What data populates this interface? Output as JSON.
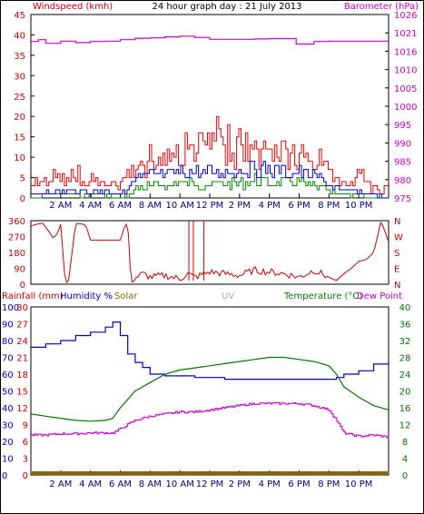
{
  "chart_data": [
    {
      "type": "line",
      "title": "24 hour graph day : 21 July 2013",
      "left_axis_label": "Windspeed (kmh)",
      "right_axis_label": "Barometer (hPa)",
      "left_ylim": [
        0,
        45
      ],
      "left_ticks": [
        "0",
        "5",
        "10",
        "15",
        "20",
        "25",
        "30",
        "35",
        "40",
        "45"
      ],
      "right_ylim": [
        975,
        1026
      ],
      "right_ticks": [
        "975",
        "980",
        "985",
        "990",
        "995",
        "1000",
        "1005",
        "1010",
        "1016",
        "1021",
        "1026"
      ],
      "x_range_hours": [
        0,
        24
      ],
      "x_ticks": [
        {
          "h": 2,
          "label": "2 AM"
        },
        {
          "h": 4,
          "label": "4 AM"
        },
        {
          "h": 6,
          "label": "6 AM"
        },
        {
          "h": 8,
          "label": "8 AM"
        },
        {
          "h": 10,
          "label": "10 AM"
        },
        {
          "h": 12,
          "label": "12 PM"
        },
        {
          "h": 14,
          "label": "2 PM"
        },
        {
          "h": 16,
          "label": "4 PM"
        },
        {
          "h": 18,
          "label": "6 PM"
        },
        {
          "h": 20,
          "label": "8 PM"
        },
        {
          "h": 22,
          "label": "10 PM"
        }
      ],
      "colors": {
        "gust": "#ee0000",
        "avg": "#0000cc",
        "min": "#008800",
        "barometer": "#cc00cc"
      },
      "series": [
        {
          "key": "barometer",
          "axis": "right",
          "x": [
            0,
            0.5,
            1,
            2,
            3,
            4,
            5,
            6,
            7,
            8,
            9,
            10,
            11,
            12,
            13,
            14,
            15,
            16,
            17,
            17.8,
            18.5,
            19,
            20,
            21,
            22,
            23,
            24
          ],
          "values": [
            1018.5,
            1019,
            1018,
            1018.6,
            1018.2,
            1018.5,
            1018.6,
            1019,
            1019.4,
            1019.5,
            1019.8,
            1020,
            1019.6,
            1019.1,
            1019.1,
            1019.1,
            1019.2,
            1019.3,
            1019.3,
            1017.8,
            1017.8,
            1018.5,
            1018.6,
            1018.6,
            1018.6,
            1018.6,
            1018.6
          ]
        },
        {
          "key": "gust",
          "axis": "left",
          "x": [
            0,
            1,
            2,
            3,
            4,
            5,
            6,
            6.5,
            7,
            8,
            9,
            10,
            11,
            12,
            12.5,
            13,
            14,
            15,
            16,
            17,
            18,
            19,
            20,
            20.5,
            21,
            22,
            22.5,
            23,
            24
          ],
          "values": [
            3,
            4,
            5,
            5,
            4,
            3,
            2,
            6,
            10,
            11,
            12,
            14,
            15,
            17,
            18,
            16,
            16,
            15,
            15,
            14,
            12,
            11,
            8,
            6,
            3,
            6,
            4,
            2,
            0
          ]
        },
        {
          "key": "avg",
          "axis": "left",
          "x": [
            0,
            1,
            2,
            3,
            4,
            5,
            6,
            6.5,
            7,
            8,
            9,
            10,
            11,
            12,
            13,
            14,
            15,
            16,
            17,
            18,
            19,
            20,
            21,
            22,
            23,
            24
          ],
          "values": [
            1,
            2,
            2,
            2,
            2,
            2,
            1,
            3,
            6,
            7,
            7,
            8,
            8,
            8,
            8,
            9,
            9,
            9,
            8,
            8,
            7,
            4,
            2,
            2,
            1,
            0
          ]
        },
        {
          "key": "min",
          "axis": "left",
          "x": [
            0,
            1,
            2,
            3,
            4,
            5,
            6,
            6.5,
            7,
            8,
            9,
            10,
            11,
            12,
            13,
            14,
            15,
            16,
            17,
            18,
            19,
            20,
            21,
            22,
            23,
            24
          ],
          "values": [
            0,
            1,
            1,
            1,
            1,
            1,
            0,
            1,
            3,
            4,
            4,
            5,
            5,
            4,
            5,
            5,
            6,
            5,
            5,
            5,
            4,
            2,
            1,
            1,
            0,
            0
          ]
        }
      ]
    },
    {
      "type": "line",
      "title": "",
      "left_ylim": [
        0,
        360
      ],
      "left_ticks": [
        "0",
        "90",
        "180",
        "270",
        "360"
      ],
      "right_ticks": [
        "N",
        "E",
        "S",
        "W",
        "N"
      ],
      "colors": {
        "direction": "#cc0000"
      },
      "series": [
        {
          "key": "direction",
          "x": [
            0,
            0.4,
            0.8,
            1.2,
            1.5,
            1.8,
            2.0,
            2.3,
            2.5,
            3.0,
            3.5,
            3.7,
            4.0,
            5.0,
            6.0,
            6.3,
            6.5,
            6.7,
            7.5,
            8.0,
            9.0,
            10.0,
            10.5,
            11.0,
            12.0,
            13.0,
            14.0,
            15.0,
            16.0,
            17.0,
            18.0,
            19.0,
            20.0,
            20.5,
            21.0,
            21.5,
            22.0,
            22.5,
            23.0,
            23.5,
            24.0
          ],
          "values": [
            330,
            340,
            345,
            300,
            260,
            290,
            340,
            20,
            0,
            345,
            340,
            330,
            250,
            250,
            250,
            330,
            350,
            20,
            60,
            40,
            50,
            30,
            60,
            40,
            70,
            60,
            50,
            80,
            70,
            60,
            40,
            80,
            40,
            20,
            60,
            90,
            130,
            140,
            180,
            360,
            240
          ]
        }
      ]
    },
    {
      "type": "line",
      "title": "",
      "labels": {
        "rainfall": "Rainfall (mm)",
        "humidity": "Humidity %",
        "solar": "Solar",
        "uv": "UV",
        "temperature": "Temperature (°C)",
        "dewpoint": "Dew Point"
      },
      "left_ticks_rain": [
        "0",
        "3",
        "6",
        "9",
        "12",
        "15",
        "18",
        "21",
        "24",
        "27",
        "30"
      ],
      "left_ticks_humidity": [
        "0",
        "10",
        "20",
        "30",
        "40",
        "50",
        "60",
        "70",
        "80",
        "90",
        "100"
      ],
      "right_ylim": [
        0,
        40
      ],
      "right_ticks": [
        "0",
        "4",
        "8",
        "12",
        "16",
        "20",
        "24",
        "28",
        "32",
        "36",
        "40"
      ],
      "colors": {
        "humidity": "#0000cc",
        "temperature": "#007700",
        "dewpoint": "#cc00cc",
        "rain": "#886600",
        "solar": "#ddaa00"
      },
      "series": [
        {
          "key": "humidity",
          "axis": "humidity",
          "x": [
            0,
            1,
            2,
            3,
            4,
            5,
            5.5,
            6,
            6.5,
            7,
            7.5,
            8,
            9,
            10,
            11,
            12,
            13,
            14,
            15,
            16,
            17,
            18,
            19,
            20,
            20.5,
            21,
            22,
            23,
            24
          ],
          "values": [
            76,
            78,
            80,
            83,
            85,
            88,
            91,
            83,
            72,
            67,
            64,
            60,
            59,
            59,
            58,
            58,
            57,
            57,
            57,
            57,
            57,
            57,
            57,
            57,
            58,
            60,
            62,
            66,
            68
          ]
        },
        {
          "key": "temperature",
          "axis": "right",
          "x": [
            0,
            1,
            2,
            3,
            4,
            5,
            5.5,
            6,
            6.5,
            7,
            7.5,
            8,
            9,
            10,
            11,
            12,
            13,
            14,
            15,
            16,
            17,
            18,
            19,
            20,
            20.5,
            21,
            22,
            23,
            24
          ],
          "values": [
            14.5,
            14,
            13.5,
            13,
            12.8,
            13,
            13.5,
            16,
            18,
            20,
            21,
            22,
            24,
            25,
            25.5,
            26,
            26.5,
            27,
            27.5,
            28,
            28,
            27.5,
            27,
            26,
            24,
            21,
            18.5,
            16.5,
            15.5
          ]
        },
        {
          "key": "dewpoint",
          "axis": "right",
          "x": [
            0,
            1,
            2,
            3,
            4,
            5,
            5.5,
            6,
            6.5,
            7,
            7.5,
            8,
            9,
            10,
            11,
            12,
            13,
            14,
            15,
            16,
            17,
            18,
            19,
            20,
            20.5,
            21,
            22,
            23,
            24
          ],
          "values": [
            9.5,
            9.5,
            9.8,
            9.8,
            10,
            10,
            10,
            11,
            12,
            13,
            13.5,
            14,
            14.5,
            15,
            15,
            15.5,
            16,
            16.5,
            17,
            17,
            17,
            17,
            16.5,
            15.5,
            13,
            10,
            9.2,
            9.5,
            9
          ]
        },
        {
          "key": "rain",
          "axis": "rain",
          "x": [
            0,
            24
          ],
          "values": [
            0,
            0
          ]
        }
      ]
    }
  ]
}
